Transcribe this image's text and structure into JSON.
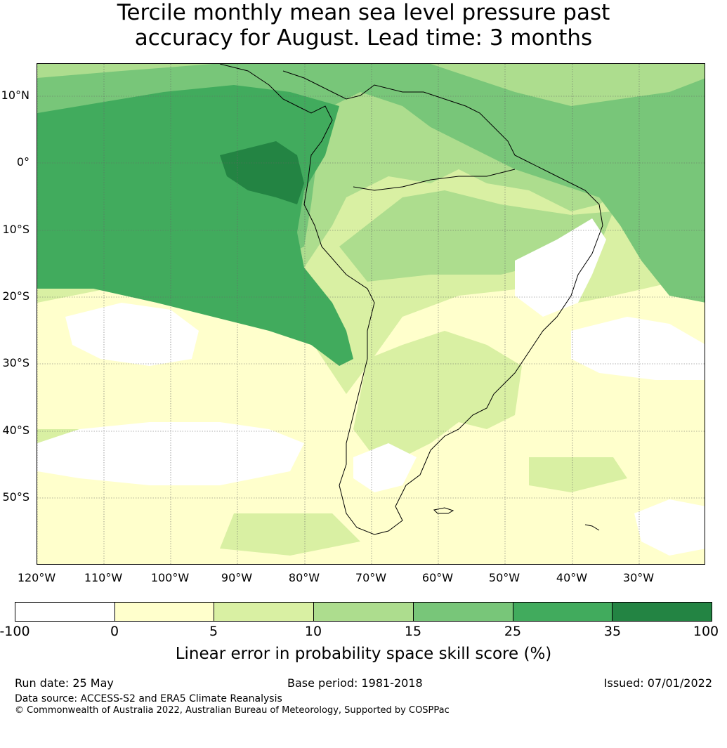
{
  "title": {
    "line1": "Tercile monthly mean sea level pressure past",
    "line2": "accuracy for August. Lead time: 3 months"
  },
  "map": {
    "lat_labels": [
      "10°N",
      "0°",
      "10°S",
      "20°S",
      "30°S",
      "40°S",
      "50°S"
    ],
    "lon_labels": [
      "120°W",
      "110°W",
      "100°W",
      "90°W",
      "80°W",
      "70°W",
      "60°W",
      "50°W",
      "40°W",
      "30°W"
    ],
    "colors": {
      "neg": "#ffffff",
      "c0_5": "#ffffcc",
      "c5_10": "#d9f0a3",
      "c10_15": "#addd8e",
      "c15_25": "#78c679",
      "c25_35": "#41ab5d",
      "c35_100": "#238443"
    }
  },
  "colorbar": {
    "ticks": [
      "-100",
      "0",
      "5",
      "10",
      "15",
      "25",
      "35",
      "100"
    ],
    "label": "Linear error in probability space skill score (%)"
  },
  "footer": {
    "run_date": "Run date: 25 May",
    "base_period": "Base period: 1981-2018",
    "issued": "Issued: 07/01/2022",
    "data_source": "Data source: ACCESS-S2 and ERA5 Climate Reanalysis",
    "copyright": "© Commonwealth of Australia 2022, Australian Bureau of Meteorology, Supported by COSPPac"
  }
}
